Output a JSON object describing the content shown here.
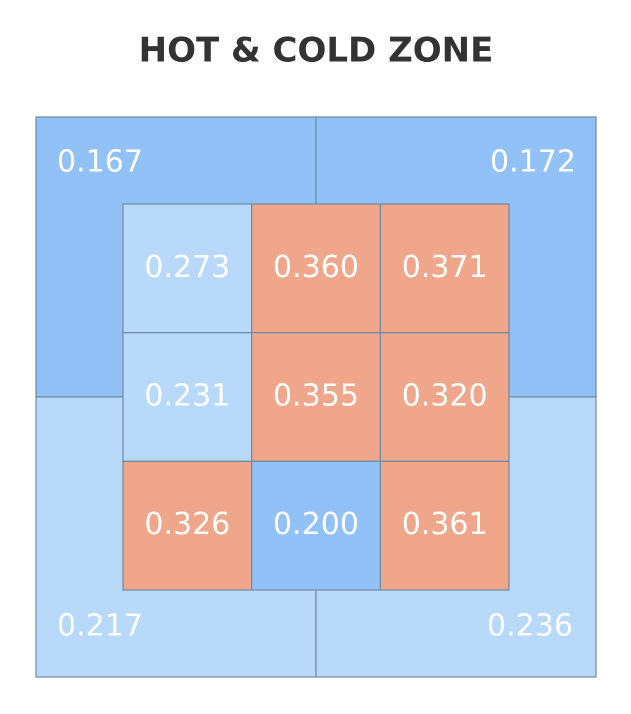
{
  "chart_data": {
    "type": "zone",
    "title": "HOT & COLD ZONE",
    "outer": {
      "values": [
        [
          0.167,
          0.172
        ],
        [
          0.217,
          0.236
        ]
      ],
      "value_labels": [
        [
          "0.167",
          "0.172"
        ],
        [
          "0.217",
          "0.236"
        ]
      ],
      "colors": [
        [
          "#92c1f7",
          "#92c1f7"
        ],
        [
          "#b9d9fb",
          "#b9d9fb"
        ]
      ]
    },
    "inner": {
      "values": [
        [
          0.273,
          0.36,
          0.371
        ],
        [
          0.231,
          0.355,
          0.32
        ],
        [
          0.326,
          0.2,
          0.361
        ]
      ],
      "value_labels": [
        [
          "0.273",
          "0.360",
          "0.371"
        ],
        [
          "0.231",
          "0.355",
          "0.320"
        ],
        [
          "0.326",
          "0.200",
          "0.361"
        ]
      ],
      "colors": [
        [
          "#b9d9fb",
          "#f0a68a",
          "#f0a68a"
        ],
        [
          "#b9d9fb",
          "#f0a68a",
          "#f0a68a"
        ],
        [
          "#f0a68a",
          "#92c1f7",
          "#f0a68a"
        ]
      ]
    }
  }
}
